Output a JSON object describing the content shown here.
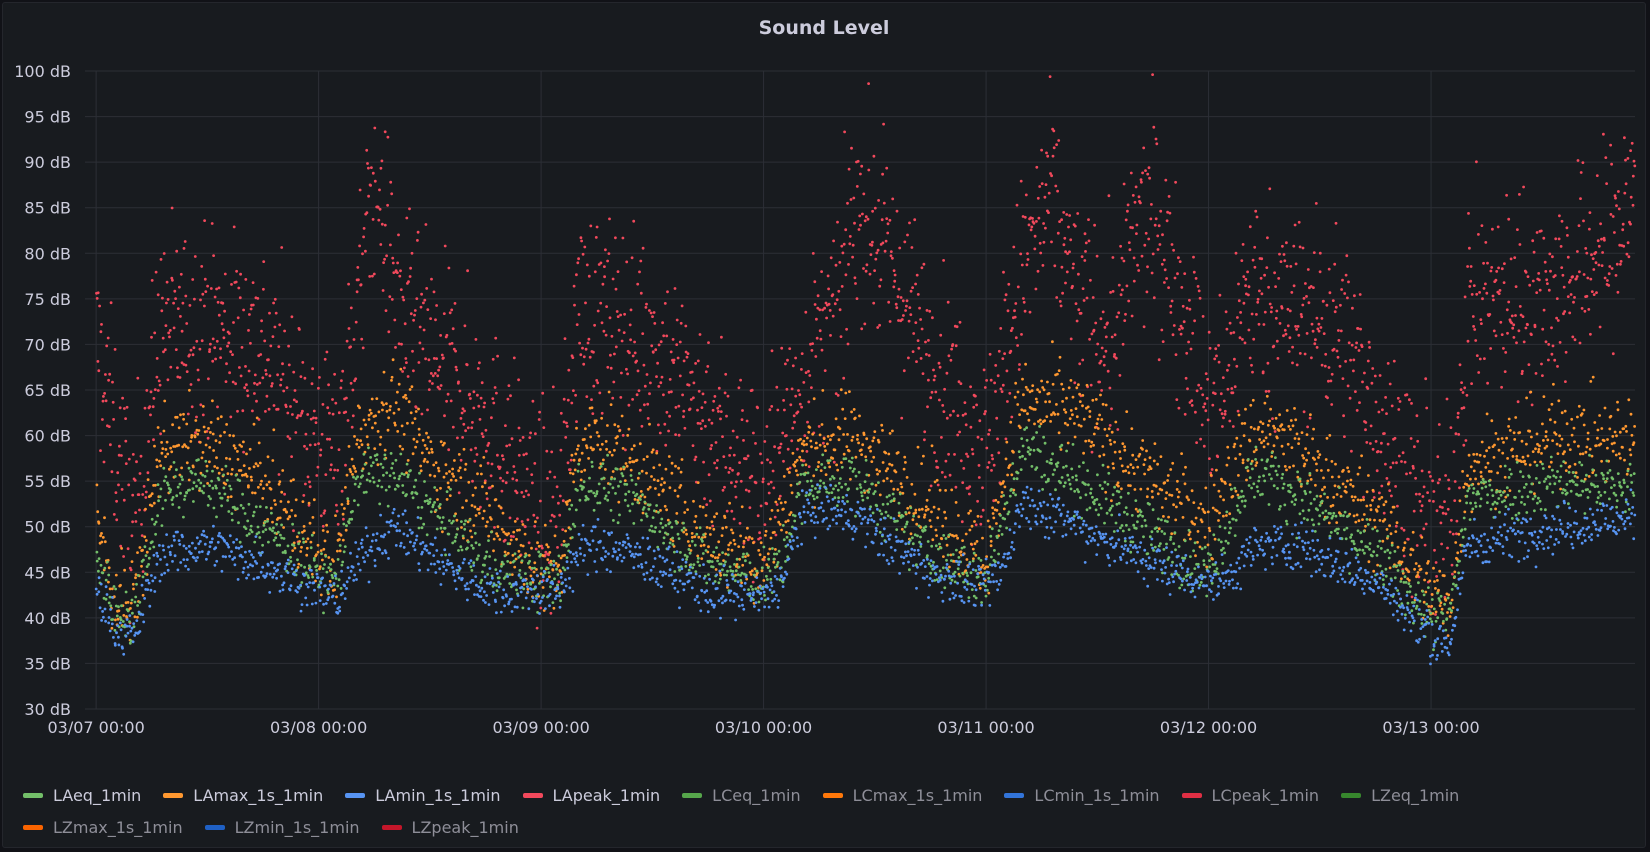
{
  "panel": {
    "title": "Sound Level"
  },
  "chart_data": {
    "type": "scatter",
    "title": "Sound Level",
    "xlabel": "",
    "ylabel": "",
    "y_unit": "dB",
    "ylim": [
      30,
      100
    ],
    "y_ticks": [
      "100 dB",
      "95 dB",
      "90 dB",
      "85 dB",
      "80 dB",
      "75 dB",
      "70 dB",
      "65 dB",
      "60 dB",
      "55 dB",
      "50 dB",
      "45 dB",
      "40 dB",
      "35 dB",
      "30 dB"
    ],
    "x_ticks": [
      "03/07 00:00",
      "03/08 00:00",
      "03/09 00:00",
      "03/10 00:00",
      "03/11 00:00",
      "03/12 00:00",
      "03/13 00:00"
    ],
    "xlim_hours": [
      -1.2,
      166
    ],
    "grid": true,
    "legend_position": "bottom",
    "series": [
      {
        "name": "LAeq_1min",
        "color": "#73bf69",
        "active": true,
        "profile_hours": [
          0,
          2,
          4,
          7,
          12,
          18,
          24,
          26,
          28,
          32,
          36,
          42,
          48,
          50,
          52,
          54,
          58,
          66,
          72,
          74,
          76,
          78,
          82,
          90,
          96,
          98,
          100,
          106,
          114,
          120,
          122,
          124,
          126,
          130,
          138,
          144,
          146,
          148,
          152,
          158,
          166
        ],
        "profile_db": [
          47,
          41,
          40,
          54,
          55,
          50,
          45,
          44,
          55,
          56,
          52,
          46,
          44,
          44,
          54,
          55,
          53,
          46,
          44,
          46,
          54,
          55,
          55,
          47,
          44,
          52,
          59,
          55,
          49,
          45,
          50,
          55,
          56,
          53,
          47,
          40,
          40,
          53,
          54,
          55,
          54
        ]
      },
      {
        "name": "LAmax_1s_1min",
        "color": "#ff9830",
        "active": true,
        "profile_hours": [
          0,
          2,
          4,
          7,
          12,
          18,
          24,
          26,
          28,
          32,
          36,
          42,
          48,
          50,
          52,
          54,
          58,
          66,
          72,
          74,
          76,
          78,
          82,
          90,
          96,
          98,
          100,
          106,
          114,
          120,
          122,
          124,
          126,
          130,
          138,
          144,
          146,
          148,
          152,
          158,
          166
        ],
        "profile_db": [
          52,
          42,
          41,
          59,
          59,
          55,
          47,
          46,
          60,
          64,
          57,
          52,
          45,
          45,
          58,
          60,
          57,
          49,
          46,
          52,
          58,
          59,
          60,
          52,
          46,
          56,
          64,
          62,
          55,
          50,
          55,
          59,
          61,
          58,
          51,
          43,
          41,
          57,
          58,
          60,
          59
        ]
      },
      {
        "name": "LAmin_1s_1min",
        "color": "#5794f2",
        "active": true,
        "profile_hours": [
          0,
          2,
          4,
          7,
          12,
          18,
          24,
          26,
          28,
          32,
          36,
          42,
          48,
          50,
          52,
          54,
          58,
          66,
          72,
          74,
          76,
          78,
          82,
          90,
          96,
          98,
          100,
          106,
          114,
          120,
          122,
          124,
          126,
          130,
          138,
          144,
          146,
          148,
          152,
          158,
          166
        ],
        "profile_db": [
          43,
          39,
          38,
          47,
          48,
          46,
          43,
          42,
          46,
          50,
          47,
          43,
          43,
          43,
          47,
          48,
          47,
          43,
          42,
          44,
          51,
          52,
          51,
          45,
          43,
          46,
          53,
          50,
          46,
          44,
          44,
          47,
          48,
          48,
          44,
          38,
          37,
          48,
          49,
          50,
          51
        ]
      },
      {
        "name": "LApeak_1min",
        "color": "#f2495c",
        "active": true,
        "profile_hours": [
          0,
          2,
          4,
          7,
          12,
          18,
          22,
          26,
          28,
          30,
          33,
          36,
          42,
          48,
          50,
          52,
          56,
          60,
          66,
          72,
          74,
          78,
          80,
          82,
          86,
          90,
          94,
          96,
          100,
          103,
          106,
          108,
          110,
          112,
          114,
          118,
          120,
          122,
          124,
          128,
          134,
          140,
          144,
          146,
          148,
          152,
          158,
          164,
          166
        ],
        "profile_db": [
          70,
          60,
          50,
          72,
          72,
          70,
          62,
          58,
          72,
          89,
          73,
          69,
          62,
          51,
          52,
          74,
          72,
          70,
          62,
          54,
          60,
          70,
          72,
          86,
          78,
          68,
          62,
          58,
          78,
          86,
          74,
          72,
          70,
          82,
          84,
          72,
          62,
          66,
          76,
          74,
          72,
          58,
          50,
          50,
          74,
          75,
          76,
          82,
          88
        ]
      },
      {
        "name": "LCeq_1min",
        "color": "#56a64b",
        "active": false
      },
      {
        "name": "LCmax_1s_1min",
        "color": "#ff780a",
        "active": false
      },
      {
        "name": "LCmin_1s_1min",
        "color": "#3274d9",
        "active": false
      },
      {
        "name": "LCpeak_1min",
        "color": "#e02f44",
        "active": false
      },
      {
        "name": "LZeq_1min",
        "color": "#37872d",
        "active": false
      },
      {
        "name": "LZmax_1s_1min",
        "color": "#fa6400",
        "active": false
      },
      {
        "name": "LZmin_1s_1min",
        "color": "#1f60c4",
        "active": false
      },
      {
        "name": "LZpeak_1min",
        "color": "#c4162a",
        "active": false
      }
    ]
  },
  "style": {
    "background": "#181b1f",
    "grid_color": "#2c2f36",
    "axis_text_color": "#ccccdc",
    "legend_active_text": "#ccccdc",
    "legend_inactive_text": "#8e8e98"
  }
}
